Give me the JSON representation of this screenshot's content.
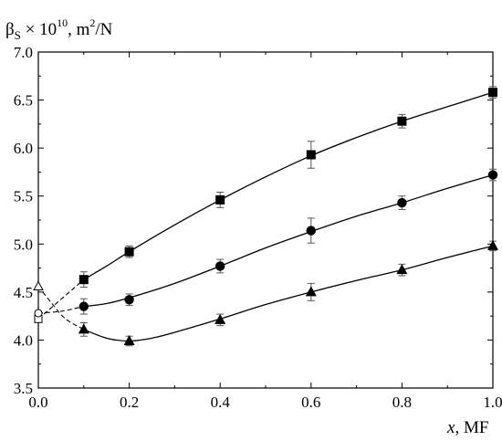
{
  "chart_data": {
    "type": "line",
    "ylabel": "βS × 10¹⁰, m²/N",
    "ylabel_parts": {
      "sym": "β",
      "sub": "S",
      "mid": " × 10",
      "sup1": "10",
      "unit": ", m",
      "sup2": "2",
      "tail": "/N"
    },
    "xlabel_parts": {
      "var": "x",
      "unit": ", MF"
    },
    "xlim": [
      0.0,
      1.0
    ],
    "ylim": [
      3.5,
      7.0
    ],
    "x_ticks": [
      "0.0",
      "0.2",
      "0.4",
      "0.6",
      "0.8",
      "1.0"
    ],
    "y_ticks": [
      "3.5",
      "4.0",
      "4.5",
      "5.0",
      "5.5",
      "6.0",
      "6.5",
      "7.0"
    ],
    "grid": false,
    "series": [
      {
        "marker": "square",
        "x": [
          0.1,
          0.2,
          0.4,
          0.6,
          0.8,
          1.0
        ],
        "y": [
          4.63,
          4.92,
          5.46,
          5.93,
          6.28,
          6.58
        ],
        "err": [
          0.08,
          0.06,
          0.08,
          0.14,
          0.07,
          0.06
        ],
        "extrapolation": {
          "x": [
            0.0,
            0.1
          ],
          "y": [
            4.22,
            4.63
          ]
        },
        "curve_x": [
          0.1,
          0.15,
          0.2,
          0.3,
          0.4,
          0.5,
          0.6,
          0.7,
          0.8,
          0.9,
          1.0
        ],
        "curve_y": [
          4.63,
          4.77,
          4.92,
          5.2,
          5.46,
          5.7,
          5.92,
          6.11,
          6.28,
          6.43,
          6.58
        ]
      },
      {
        "marker": "circle",
        "x": [
          0.1,
          0.2,
          0.4,
          0.6,
          0.8,
          1.0
        ],
        "y": [
          4.35,
          4.42,
          4.77,
          5.14,
          5.43,
          5.72
        ],
        "err": [
          0.08,
          0.06,
          0.07,
          0.13,
          0.07,
          0.06
        ],
        "extrapolation": {
          "x": [
            0.0,
            0.05,
            0.1
          ],
          "y": [
            4.28,
            4.3,
            4.35
          ]
        },
        "curve_x": [
          0.1,
          0.15,
          0.2,
          0.3,
          0.4,
          0.5,
          0.6,
          0.7,
          0.8,
          0.9,
          1.0
        ],
        "curve_y": [
          4.35,
          4.38,
          4.44,
          4.59,
          4.77,
          4.96,
          5.13,
          5.29,
          5.43,
          5.58,
          5.72
        ]
      },
      {
        "marker": "triangle",
        "x": [
          0.1,
          0.2,
          0.4,
          0.6,
          0.8,
          1.0
        ],
        "y": [
          4.11,
          3.99,
          4.21,
          4.5,
          4.73,
          4.98
        ],
        "err": [
          0.07,
          0.05,
          0.06,
          0.09,
          0.06,
          0.05
        ],
        "extrapolation": {
          "x": [
            0.0,
            0.03,
            0.06,
            0.1
          ],
          "y": [
            4.56,
            4.38,
            4.22,
            4.11
          ]
        },
        "curve_x": [
          0.1,
          0.15,
          0.2,
          0.25,
          0.3,
          0.4,
          0.5,
          0.6,
          0.7,
          0.8,
          0.9,
          1.0
        ],
        "curve_y": [
          4.11,
          4.02,
          3.99,
          4.02,
          4.08,
          4.22,
          4.37,
          4.5,
          4.62,
          4.73,
          4.86,
          4.98
        ]
      }
    ]
  }
}
